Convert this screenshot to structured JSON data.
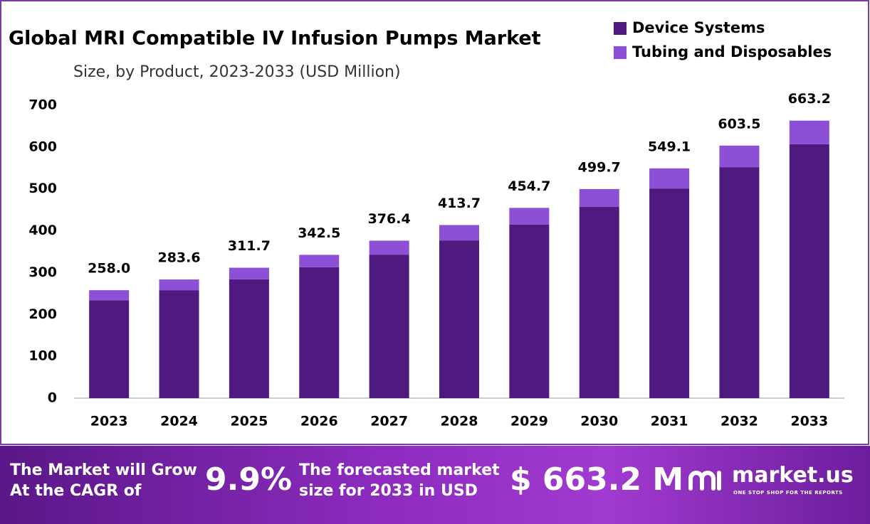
{
  "chart_data": {
    "type": "stacked-bar",
    "title": "Global MRI Compatible IV Infusion Pumps Market",
    "subtitle": "Size, by Product, 2023-2033 (USD Million)",
    "categories": [
      "2023",
      "2024",
      "2025",
      "2026",
      "2027",
      "2028",
      "2029",
      "2030",
      "2031",
      "2032",
      "2033"
    ],
    "series": [
      {
        "name": "Device Systems",
        "color": "#4e1a7f",
        "values": [
          234,
          258,
          284,
          313,
          343,
          377,
          415,
          457,
          501,
          552,
          607
        ]
      },
      {
        "name": "Tubing and Disposables",
        "color": "#8c4fd6",
        "values": [
          24,
          25.6,
          27.7,
          29.5,
          33.4,
          36.7,
          39.7,
          42.7,
          48.1,
          51.5,
          56.2
        ]
      }
    ],
    "totals": {
      "values": [
        258,
        283.6,
        311.7,
        342.5,
        376.4,
        413.7,
        454.7,
        499.7,
        549.1,
        603.5,
        663.2
      ],
      "value_labels": [
        "258.0",
        "283.6",
        "311.7",
        "342.5",
        "376.4",
        "413.7",
        "454.7",
        "499.7",
        "549.1",
        "603.5",
        "663.2"
      ]
    },
    "ylim": [
      0,
      700
    ],
    "yticks": [
      0,
      100,
      200,
      300,
      400,
      500,
      600,
      700
    ],
    "grid": false,
    "legend": "top-right"
  },
  "footer": {
    "cagr_text": [
      "The Market will Grow",
      "At the CAGR of"
    ],
    "cagr": "9.9%",
    "forecast_text": [
      "The forecasted market",
      "size for 2033 in USD"
    ],
    "forecast": "$ 663.2 M",
    "brand": "market.us",
    "tagline": "ONE STOP SHOP FOR THE REPORTS"
  }
}
